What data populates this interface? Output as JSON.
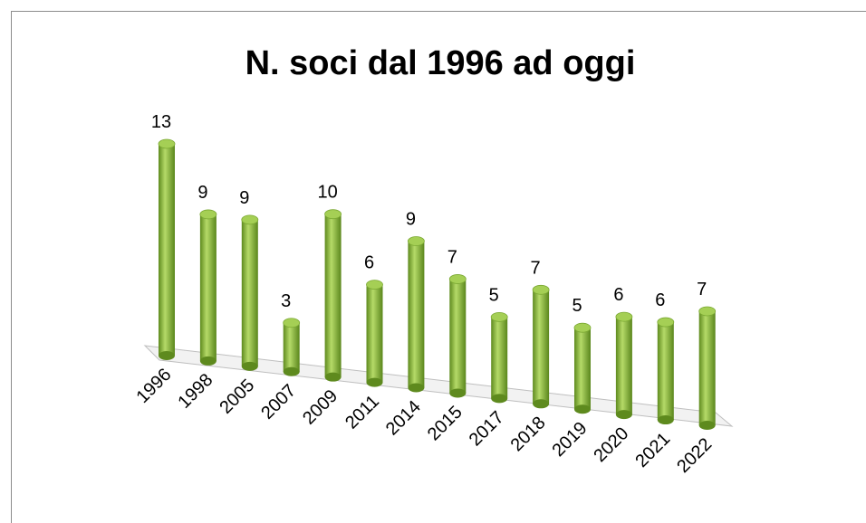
{
  "chart_data": {
    "type": "bar3d",
    "title": "N. soci dal 1996 ad oggi",
    "categories": [
      "1996",
      "1998",
      "2005",
      "2007",
      "2009",
      "2011",
      "2014",
      "2015",
      "2017",
      "2018",
      "2019",
      "2020",
      "2021",
      "2022"
    ],
    "values": [
      13,
      9,
      9,
      3,
      10,
      6,
      9,
      7,
      5,
      7,
      5,
      6,
      6,
      7
    ],
    "color": "#8dbb3c"
  }
}
